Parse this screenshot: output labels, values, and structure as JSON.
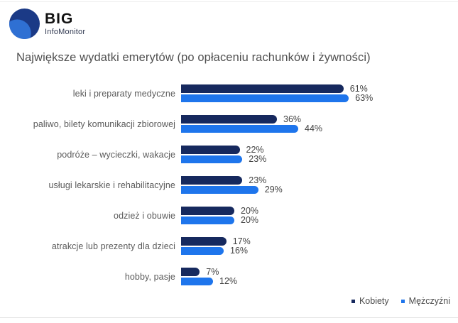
{
  "logo": {
    "name": "BIG",
    "subtitle": "InfoMonitor"
  },
  "colors": {
    "logo_dark_blue": "#1b3a86",
    "logo_light_blue": "#2f70d3",
    "kobiety": "#16295e",
    "mezczyzni": "#1e75ec"
  },
  "chart_data": {
    "type": "bar",
    "orientation": "horizontal",
    "title": "Największe wydatki emerytów (po opłaceniu rachunków i żywności)",
    "categories": [
      "leki i preparaty medyczne",
      "paliwo, bilety komunikacji zbiorowej",
      "podróże – wycieczki, wakacje",
      "usługi lekarskie i rehabilitacyjne",
      "odzież i obuwie",
      "atrakcje lub prezenty dla dzieci",
      "hobby, pasje"
    ],
    "series": [
      {
        "name": "Kobiety",
        "color": "#16295e",
        "values": [
          61,
          36,
          22,
          23,
          20,
          17,
          7
        ]
      },
      {
        "name": "Mężczyźni",
        "color": "#1e75ec",
        "values": [
          63,
          44,
          23,
          29,
          20,
          16,
          12
        ]
      }
    ],
    "value_suffix": "%",
    "value_labels": true,
    "xlim": [
      0,
      70
    ],
    "grid": false,
    "legend_position": "bottom-right"
  }
}
